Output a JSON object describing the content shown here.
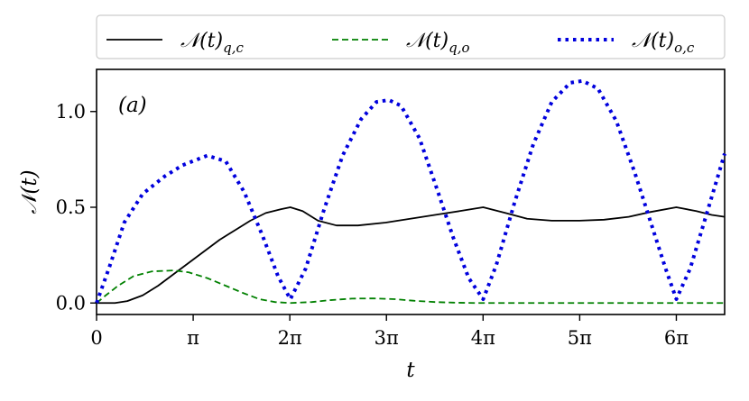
{
  "chart_data": {
    "type": "line",
    "panel_label": "(a)",
    "xlabel": "t",
    "ylabel": "𝒩(t)",
    "xlim": [
      0,
      20.42
    ],
    "ylim": [
      -0.06,
      1.22
    ],
    "grid": false,
    "legend_placement": "above plot, horizontal",
    "x_ticks": [
      {
        "value": 0,
        "label": "0"
      },
      {
        "value": 3.1416,
        "label": "π"
      },
      {
        "value": 6.2832,
        "label": "2π"
      },
      {
        "value": 9.4248,
        "label": "3π"
      },
      {
        "value": 12.5664,
        "label": "4π"
      },
      {
        "value": 15.708,
        "label": "5π"
      },
      {
        "value": 18.8496,
        "label": "6π"
      }
    ],
    "y_ticks": [
      {
        "value": 0.0,
        "label": "0.0"
      },
      {
        "value": 0.5,
        "label": "0.5"
      },
      {
        "value": 1.0,
        "label": "1.0"
      }
    ],
    "series": [
      {
        "name": "𝒩(t)q,c",
        "legend_main": "𝒩(t)",
        "legend_sub": "q,c",
        "color": "#000000",
        "style": "solid",
        "x": [
          0,
          0.6,
          1.0,
          1.5,
          2.0,
          2.5,
          3.0,
          3.5,
          4.0,
          4.5,
          5.0,
          5.5,
          6.0,
          6.3,
          6.7,
          7.2,
          7.8,
          8.5,
          9.4,
          10.2,
          11.0,
          11.8,
          12.57,
          13.3,
          14.0,
          14.8,
          15.7,
          16.5,
          17.3,
          18.0,
          18.85,
          19.5,
          20.0,
          20.42
        ],
        "y": [
          0.0,
          0.0,
          0.01,
          0.04,
          0.09,
          0.15,
          0.21,
          0.27,
          0.33,
          0.38,
          0.43,
          0.47,
          0.49,
          0.5,
          0.48,
          0.43,
          0.405,
          0.405,
          0.42,
          0.44,
          0.46,
          0.48,
          0.5,
          0.47,
          0.44,
          0.43,
          0.43,
          0.435,
          0.45,
          0.475,
          0.5,
          0.48,
          0.46,
          0.45
        ]
      },
      {
        "name": "𝒩(t)q,o",
        "legend_main": "𝒩(t)",
        "legend_sub": "q,o",
        "color": "#008000",
        "style": "dashed",
        "x": [
          0,
          0.3,
          0.7,
          1.2,
          1.8,
          2.5,
          3.0,
          3.6,
          4.2,
          4.8,
          5.3,
          5.8,
          6.3,
          7.0,
          7.6,
          8.3,
          9.0,
          9.7,
          10.3,
          11.0,
          11.6,
          12.3,
          13.0,
          15.0,
          18.0,
          20.42
        ],
        "y": [
          0.0,
          0.04,
          0.09,
          0.14,
          0.165,
          0.17,
          0.16,
          0.13,
          0.09,
          0.05,
          0.02,
          0.005,
          0.0,
          0.005,
          0.015,
          0.023,
          0.024,
          0.02,
          0.012,
          0.005,
          0.002,
          0.0,
          0.0,
          0.0,
          0.0,
          0.0
        ]
      },
      {
        "name": "𝒩(t)o,c",
        "legend_main": "𝒩(t)",
        "legend_sub": "o,c",
        "color": "#0000dd",
        "style": "dotted",
        "x": [
          0,
          0.4,
          0.9,
          1.5,
          2.2,
          2.8,
          3.6,
          4.2,
          4.8,
          5.4,
          5.9,
          6.3,
          6.8,
          7.4,
          8.0,
          8.6,
          9.1,
          9.5,
          9.9,
          10.5,
          11.1,
          11.6,
          12.1,
          12.57,
          13.0,
          13.6,
          14.2,
          14.8,
          15.4,
          15.8,
          16.3,
          16.9,
          17.5,
          18.1,
          18.5,
          18.85,
          19.3,
          19.9,
          20.42
        ],
        "y": [
          0.0,
          0.18,
          0.42,
          0.57,
          0.66,
          0.72,
          0.77,
          0.74,
          0.58,
          0.35,
          0.14,
          0.02,
          0.18,
          0.49,
          0.77,
          0.96,
          1.05,
          1.06,
          1.03,
          0.86,
          0.58,
          0.34,
          0.13,
          0.02,
          0.2,
          0.53,
          0.83,
          1.05,
          1.15,
          1.16,
          1.12,
          0.95,
          0.68,
          0.38,
          0.18,
          0.02,
          0.18,
          0.5,
          0.78
        ]
      }
    ]
  }
}
